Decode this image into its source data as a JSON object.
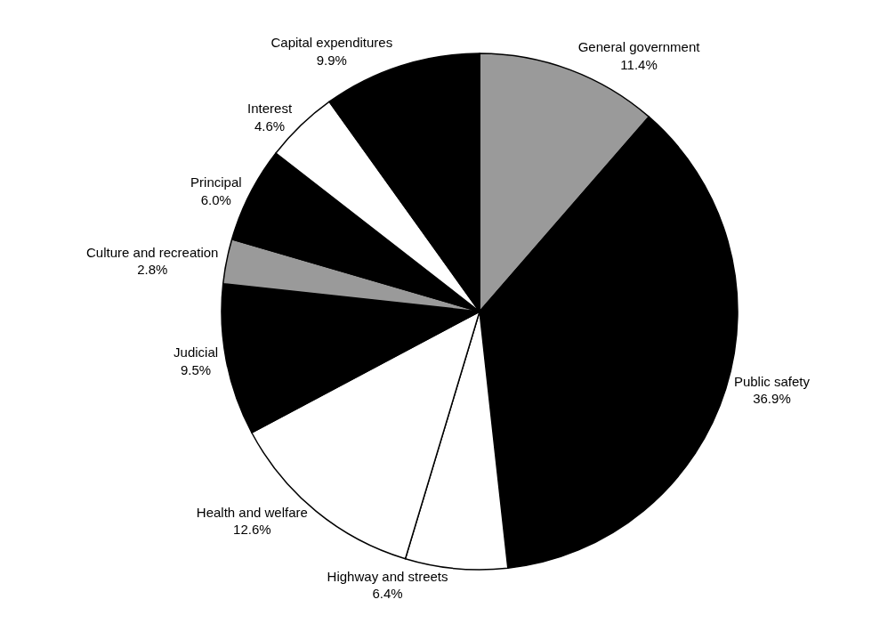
{
  "chart_data": {
    "type": "pie",
    "categories": [
      "General government",
      "Public safety",
      "Highway and streets",
      "Health and welfare",
      "Judicial",
      "Culture and recreation",
      "Principal",
      "Interest",
      "Capital expenditures"
    ],
    "values": [
      11.4,
      36.9,
      6.4,
      12.6,
      9.5,
      2.8,
      6.0,
      4.6,
      9.9
    ],
    "value_labels": [
      "11.4%",
      "36.9%",
      "6.4%",
      "12.6%",
      "9.5%",
      "2.8%",
      "6.0%",
      "4.6%",
      "9.9%"
    ],
    "colors": [
      "#9a9a9a",
      "#000000",
      "#ffffff",
      "#ffffff",
      "#000000",
      "#9a9a9a",
      "#000000",
      "#ffffff",
      "#000000"
    ],
    "legend": false
  }
}
